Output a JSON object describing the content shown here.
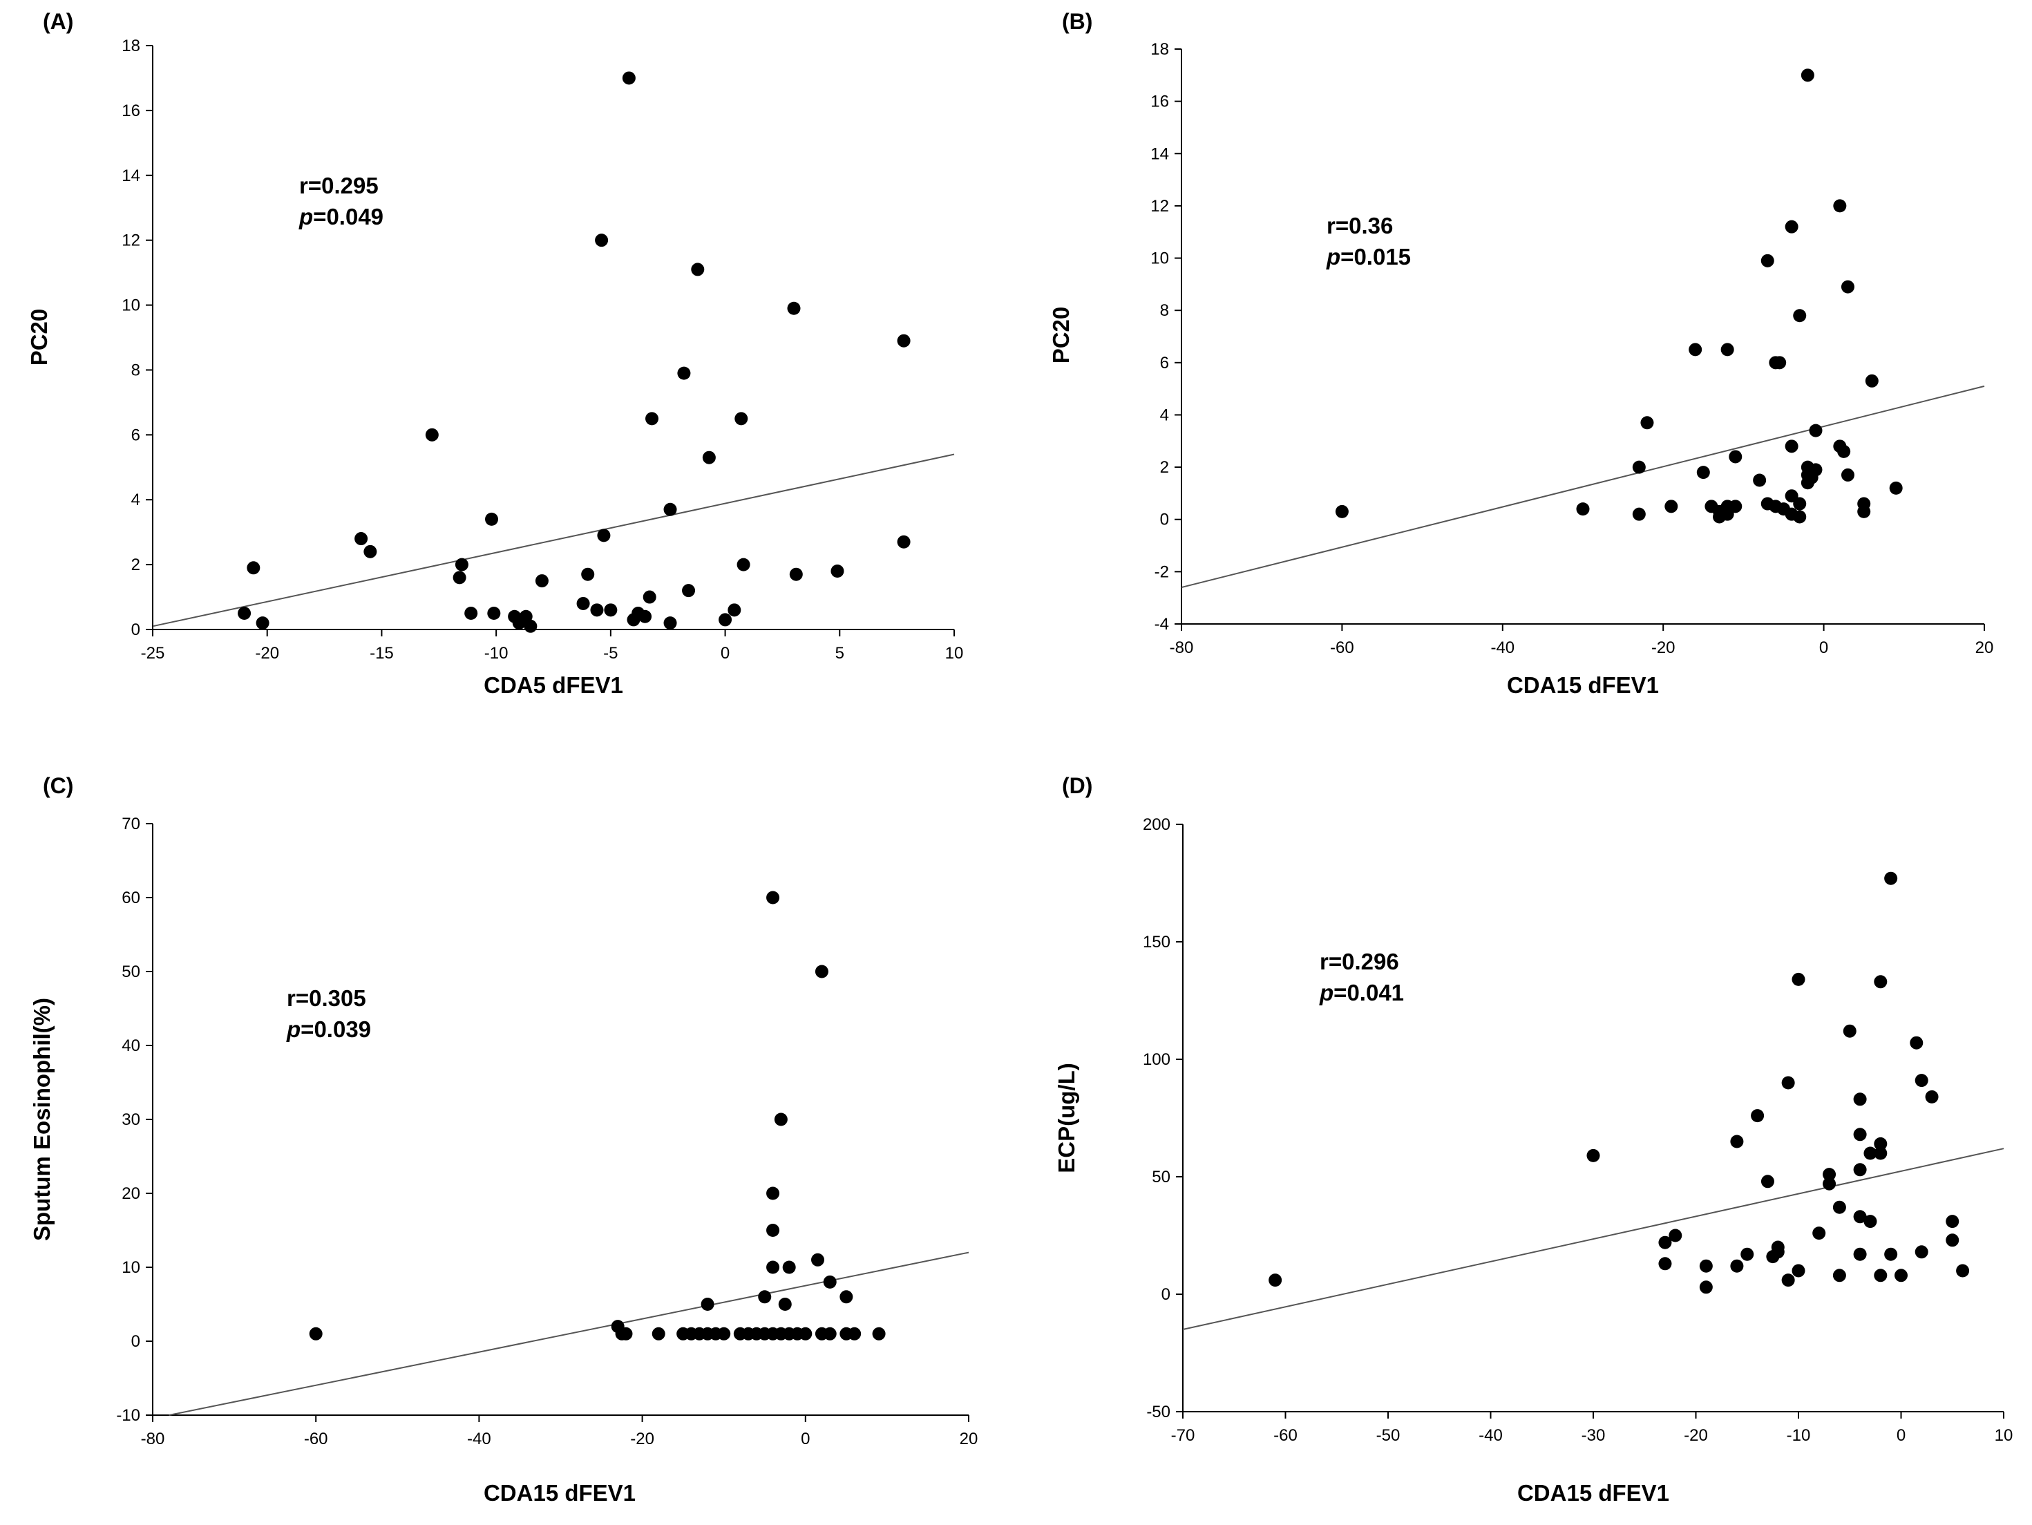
{
  "chart_data": [
    {
      "type": "scatter",
      "panel_label": "(A)",
      "xlabel": "CDA5 dFEV1",
      "ylabel": "PC20",
      "xlim": [
        -25,
        10
      ],
      "ylim": [
        0,
        18
      ],
      "xticks": [
        -25,
        -20,
        -15,
        -10,
        -5,
        0,
        5,
        10
      ],
      "yticks": [
        0,
        2,
        4,
        6,
        8,
        10,
        12,
        14,
        16,
        18
      ],
      "annotation": {
        "r_label": "r=0.295",
        "p_letter": "p",
        "p_value": "=0.049"
      },
      "fit_line": {
        "x": [
          -25,
          10
        ],
        "y": [
          0.1,
          5.4
        ]
      },
      "points": [
        [
          -4.2,
          17.0
        ],
        [
          -5.4,
          12.0
        ],
        [
          -1.2,
          11.1
        ],
        [
          3.0,
          9.9
        ],
        [
          7.8,
          8.9
        ],
        [
          -1.8,
          7.9
        ],
        [
          -12.8,
          6.0
        ],
        [
          -3.2,
          6.5
        ],
        [
          0.7,
          6.5
        ],
        [
          -0.7,
          5.3
        ],
        [
          -2.4,
          3.7
        ],
        [
          -10.2,
          3.4
        ],
        [
          -5.3,
          2.9
        ],
        [
          -15.9,
          2.8
        ],
        [
          -15.5,
          2.4
        ],
        [
          7.8,
          2.7
        ],
        [
          -20.6,
          1.9
        ],
        [
          -11.5,
          2.0
        ],
        [
          -11.6,
          1.6
        ],
        [
          0.8,
          2.0
        ],
        [
          4.9,
          1.8
        ],
        [
          3.1,
          1.7
        ],
        [
          -6.0,
          1.7
        ],
        [
          -8.0,
          1.5
        ],
        [
          -1.6,
          1.2
        ],
        [
          -3.3,
          1.0
        ],
        [
          -6.2,
          0.8
        ],
        [
          -5.6,
          0.6
        ],
        [
          -5.0,
          0.6
        ],
        [
          -3.8,
          0.5
        ],
        [
          -4.0,
          0.3
        ],
        [
          -3.5,
          0.4
        ],
        [
          -11.1,
          0.5
        ],
        [
          -10.1,
          0.5
        ],
        [
          -9.2,
          0.4
        ],
        [
          -9.0,
          0.2
        ],
        [
          -8.7,
          0.4
        ],
        [
          -8.5,
          0.1
        ],
        [
          0.4,
          0.6
        ],
        [
          0.0,
          0.3
        ],
        [
          -2.4,
          0.2
        ],
        [
          -21.0,
          0.5
        ],
        [
          -20.2,
          0.2
        ]
      ]
    },
    {
      "type": "scatter",
      "panel_label": "(B)",
      "xlabel": "CDA15 dFEV1",
      "ylabel": "PC20",
      "xlim": [
        -80,
        20
      ],
      "ylim": [
        -4,
        18
      ],
      "xticks": [
        -80,
        -60,
        -40,
        -20,
        0,
        20
      ],
      "yticks": [
        -4,
        -2,
        0,
        2,
        4,
        6,
        8,
        10,
        12,
        14,
        16,
        18
      ],
      "annotation": {
        "r_label": "r=0.36",
        "p_letter": "p",
        "p_value": "=0.015"
      },
      "fit_line": {
        "x": [
          -80,
          20
        ],
        "y": [
          -2.6,
          5.1
        ]
      },
      "points": [
        [
          -2,
          17.0
        ],
        [
          2,
          12.0
        ],
        [
          -4,
          11.2
        ],
        [
          -7,
          9.9
        ],
        [
          3,
          8.9
        ],
        [
          -3,
          7.8
        ],
        [
          -16,
          6.5
        ],
        [
          -12,
          6.5
        ],
        [
          -5.5,
          6.0
        ],
        [
          -6,
          6.0
        ],
        [
          6,
          5.3
        ],
        [
          -22,
          3.7
        ],
        [
          -1,
          3.4
        ],
        [
          -4,
          2.8
        ],
        [
          2,
          2.8
        ],
        [
          2.5,
          2.6
        ],
        [
          -11,
          2.4
        ],
        [
          -23,
          2.0
        ],
        [
          -2,
          2.0
        ],
        [
          -1,
          1.9
        ],
        [
          -15,
          1.8
        ],
        [
          -2,
          1.7
        ],
        [
          3,
          1.7
        ],
        [
          -1.5,
          1.6
        ],
        [
          -8,
          1.5
        ],
        [
          -2,
          1.4
        ],
        [
          9,
          1.2
        ],
        [
          -4,
          0.9
        ],
        [
          -7,
          0.6
        ],
        [
          -6,
          0.5
        ],
        [
          -14,
          0.5
        ],
        [
          -12,
          0.5
        ],
        [
          -11,
          0.5
        ],
        [
          -19,
          0.5
        ],
        [
          -3,
          0.6
        ],
        [
          5,
          0.6
        ],
        [
          -30,
          0.4
        ],
        [
          -13,
          0.3
        ],
        [
          -5,
          0.4
        ],
        [
          -4,
          0.2
        ],
        [
          -13,
          0.1
        ],
        [
          -12,
          0.2
        ],
        [
          -3,
          0.1
        ],
        [
          5,
          0.3
        ],
        [
          -23,
          0.2
        ],
        [
          -60,
          0.3
        ]
      ]
    },
    {
      "type": "scatter",
      "panel_label": "(C)",
      "xlabel": "CDA15 dFEV1",
      "ylabel": "Sputum Eosinophil(%)",
      "xlim": [
        -80,
        20
      ],
      "ylim": [
        -10,
        70
      ],
      "xticks": [
        -80,
        -60,
        -40,
        -20,
        0,
        20
      ],
      "yticks": [
        -10,
        0,
        10,
        20,
        30,
        40,
        50,
        60,
        70
      ],
      "annotation": {
        "r_label": "r=0.305",
        "p_letter": "p",
        "p_value": "=0.039"
      },
      "fit_line": {
        "x": [
          -78,
          20
        ],
        "y": [
          -10,
          12
        ]
      },
      "points": [
        [
          -4,
          60
        ],
        [
          2,
          50
        ],
        [
          -3,
          30
        ],
        [
          -4,
          20
        ],
        [
          -4,
          15
        ],
        [
          -4,
          10
        ],
        [
          -2,
          10
        ],
        [
          1.5,
          11
        ],
        [
          -5,
          6
        ],
        [
          -2.5,
          5
        ],
        [
          -12,
          5
        ],
        [
          3,
          8
        ],
        [
          5,
          6
        ],
        [
          -60,
          1
        ],
        [
          -23,
          2
        ],
        [
          -22.5,
          1
        ],
        [
          -22,
          1
        ],
        [
          -18,
          1
        ],
        [
          -15,
          1
        ],
        [
          -14,
          1
        ],
        [
          -13,
          1
        ],
        [
          -12,
          1
        ],
        [
          -11,
          1
        ],
        [
          -10,
          1
        ],
        [
          -8,
          1
        ],
        [
          -7,
          1
        ],
        [
          -6,
          1
        ],
        [
          -5,
          1
        ],
        [
          -4,
          1
        ],
        [
          -3,
          1
        ],
        [
          -2,
          1
        ],
        [
          -1,
          1
        ],
        [
          0,
          1
        ],
        [
          2,
          1
        ],
        [
          3,
          1
        ],
        [
          5,
          1
        ],
        [
          6,
          1
        ],
        [
          9,
          1
        ]
      ]
    },
    {
      "type": "scatter",
      "panel_label": "(D)",
      "xlabel": "CDA15 dFEV1",
      "ylabel": "ECP(ug/L)",
      "xlim": [
        -70,
        10
      ],
      "ylim": [
        -50,
        200
      ],
      "xticks": [
        -70,
        -60,
        -50,
        -40,
        -30,
        -20,
        -10,
        0,
        10
      ],
      "yticks": [
        -50,
        0,
        50,
        100,
        150,
        200
      ],
      "annotation": {
        "r_label": "r=0.296",
        "p_letter": "p",
        "p_value": "=0.041"
      },
      "fit_line": {
        "x": [
          -70,
          10
        ],
        "y": [
          -15,
          62
        ]
      },
      "points": [
        [
          -1,
          177
        ],
        [
          -10,
          134
        ],
        [
          -2,
          133
        ],
        [
          -5,
          112
        ],
        [
          1.5,
          107
        ],
        [
          2,
          91
        ],
        [
          3,
          84
        ],
        [
          -11,
          90
        ],
        [
          -4,
          83
        ],
        [
          -14,
          76
        ],
        [
          -4,
          68
        ],
        [
          -16,
          65
        ],
        [
          -2,
          64
        ],
        [
          -3,
          60
        ],
        [
          -2,
          60
        ],
        [
          -30,
          59
        ],
        [
          -4,
          53
        ],
        [
          -7,
          51
        ],
        [
          -7,
          47
        ],
        [
          -13,
          48
        ],
        [
          -6,
          37
        ],
        [
          -4,
          33
        ],
        [
          -3,
          31
        ],
        [
          5,
          31
        ],
        [
          -8,
          26
        ],
        [
          -22,
          25
        ],
        [
          -23,
          22
        ],
        [
          5,
          23
        ],
        [
          -12,
          20
        ],
        [
          -12,
          18
        ],
        [
          -12.5,
          16
        ],
        [
          -15,
          17
        ],
        [
          -4,
          17
        ],
        [
          -1,
          17
        ],
        [
          2,
          18
        ],
        [
          -16,
          12
        ],
        [
          -19,
          12
        ],
        [
          -23,
          13
        ],
        [
          -10,
          10
        ],
        [
          6,
          10
        ],
        [
          -6,
          8
        ],
        [
          -2,
          8
        ],
        [
          0,
          8
        ],
        [
          -11,
          6
        ],
        [
          -19,
          3
        ],
        [
          -61,
          6
        ]
      ]
    }
  ]
}
